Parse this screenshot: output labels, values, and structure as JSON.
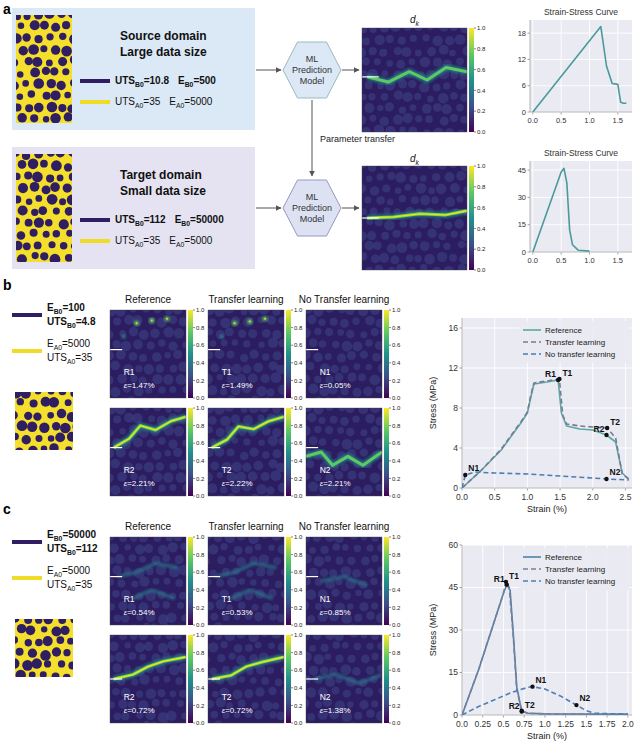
{
  "chart_data": [
    {
      "type": "line",
      "title": "Strain-Stress Curve",
      "xlim": [
        -0.05,
        1.75
      ],
      "ylim": [
        0,
        21
      ],
      "grid": true,
      "xticks": [
        {
          "value": 0,
          "label": "0.0"
        },
        0.5,
        {
          "value": 1,
          "label": "1.0"
        },
        1.5
      ],
      "yticks": [
        0,
        6,
        12,
        18
      ],
      "series": [
        {
          "color": "#4a9a9b",
          "line_style": "solid",
          "x": [
            0,
            1.2,
            1.3,
            1.4,
            1.5,
            1.55,
            1.6,
            1.65
          ],
          "values": [
            0,
            19.5,
            10.5,
            6.5,
            6.3,
            2.2,
            2.0,
            2.0
          ]
        }
      ]
    },
    {
      "type": "line",
      "title": "Strain-Stress Curve",
      "xlim": [
        -0.05,
        1.75
      ],
      "ylim": [
        0,
        50
      ],
      "grid": true,
      "xticks": [
        {
          "value": 0,
          "label": "0.0"
        },
        0.5,
        {
          "value": 1,
          "label": "1.0"
        },
        1.5
      ],
      "yticks": [
        0,
        15,
        30,
        45
      ],
      "series": [
        {
          "color": "#4a9a9b",
          "line_style": "solid",
          "x": [
            0,
            0.5,
            0.55,
            0.6,
            0.65,
            0.7,
            0.8,
            1.0
          ],
          "values": [
            0,
            44,
            46,
            38,
            12,
            4,
            1,
            0.5
          ]
        }
      ]
    },
    {
      "type": "line",
      "x_label": "Strain (%)",
      "y_label": "Stress (MPa)",
      "xlim": [
        0,
        2.6
      ],
      "ylim": [
        0,
        17
      ],
      "grid": true,
      "legend": "upper right",
      "xticks": [
        {
          "value": 0,
          "label": "0.0"
        },
        0.5,
        {
          "value": 1,
          "label": "1.0"
        },
        1.5,
        {
          "value": 2,
          "label": "2.0"
        },
        2.5
      ],
      "yticks": [
        0,
        4,
        8,
        12,
        16
      ],
      "series": [
        {
          "name": "Reference",
          "color": "#5aa8a0",
          "line_style": "solid",
          "x": [
            0,
            0.3,
            0.6,
            0.9,
            1.0,
            1.05,
            1.1,
            1.3,
            1.47,
            1.52,
            1.6,
            1.8,
            2.0,
            2.21,
            2.35,
            2.45,
            2.55
          ],
          "values": [
            0,
            1.8,
            3.8,
            6.5,
            7.5,
            9,
            10.4,
            10.6,
            10.8,
            7.5,
            6.2,
            5.9,
            5.8,
            5.3,
            4.6,
            1.5,
            0.9
          ]
        },
        {
          "name": "Transfer learning",
          "color": "#7a7a98",
          "line_style": "dashed",
          "x": [
            0,
            0.3,
            0.6,
            0.9,
            1.0,
            1.05,
            1.1,
            1.3,
            1.49,
            1.54,
            1.6,
            1.8,
            2.0,
            2.22,
            2.35,
            2.45,
            2.55
          ],
          "values": [
            0,
            1.8,
            3.9,
            6.6,
            7.6,
            9.2,
            10.5,
            10.7,
            10.9,
            7.3,
            6.4,
            6.2,
            6.1,
            6.0,
            5.0,
            1.4,
            0.9
          ]
        },
        {
          "name": "No transfer learning",
          "color": "#4a7db3",
          "line_style": "dashed",
          "x": [
            0,
            0.05,
            0.2,
            0.5,
            1.0,
            1.5,
            2.0,
            2.21,
            2.55
          ],
          "values": [
            0,
            1.3,
            1.6,
            1.5,
            1.4,
            1.2,
            1.0,
            0.9,
            0.8
          ]
        }
      ],
      "annotations": [
        {
          "label": "R1",
          "x": 1.47,
          "y": 10.8
        },
        {
          "label": "T1",
          "x": 1.49,
          "y": 10.9
        },
        {
          "label": "R2",
          "x": 2.21,
          "y": 5.3
        },
        {
          "label": "T2",
          "x": 2.22,
          "y": 6.0
        },
        {
          "label": "N1",
          "x": 0.05,
          "y": 1.3
        },
        {
          "label": "N2",
          "x": 2.21,
          "y": 0.9
        }
      ]
    },
    {
      "type": "line",
      "x_label": "Strain (%)",
      "y_label": "Stress (MPa)",
      "xlim": [
        0,
        2.05
      ],
      "ylim": [
        0,
        60
      ],
      "grid": true,
      "legend": "upper right",
      "xticks": [
        {
          "value": 0,
          "label": "0.0"
        },
        0.25,
        0.5,
        0.75,
        {
          "value": 1,
          "label": "1.0"
        },
        1.25,
        1.5,
        1.75,
        {
          "value": 2,
          "label": "2.0"
        }
      ],
      "yticks": [
        0,
        15,
        30,
        45,
        60
      ],
      "series": [
        {
          "name": "Reference",
          "color": "#4f80aa",
          "line_style": "solid",
          "x": [
            0,
            0.2,
            0.4,
            0.5,
            0.54,
            0.58,
            0.62,
            0.66,
            0.72,
            0.8,
            1.0,
            2.0
          ],
          "values": [
            0,
            16,
            34,
            43,
            46,
            44,
            28,
            10,
            1.2,
            0.6,
            0.4,
            0.3
          ]
        },
        {
          "name": "Transfer learning",
          "color": "#7d7f96",
          "line_style": "dashed",
          "x": [
            0,
            0.2,
            0.4,
            0.5,
            0.53,
            0.57,
            0.62,
            0.66,
            0.72,
            0.8,
            1.0,
            2.0
          ],
          "values": [
            0,
            16,
            34,
            43,
            47,
            45,
            27,
            9,
            1.5,
            0.6,
            0.4,
            0.3
          ]
        },
        {
          "name": "No transfer learning",
          "color": "#4d7fb5",
          "line_style": "dashed",
          "x": [
            0,
            0.2,
            0.4,
            0.6,
            0.8,
            0.85,
            1.0,
            1.2,
            1.38,
            1.5,
            1.6,
            2.0
          ],
          "values": [
            0,
            3,
            5.5,
            8,
            9.8,
            10,
            9.2,
            6.5,
            3.5,
            1.5,
            0.6,
            0.3
          ]
        }
      ],
      "annotations": [
        {
          "label": "R1",
          "x": 0.54,
          "y": 46
        },
        {
          "label": "T1",
          "x": 0.53,
          "y": 47
        },
        {
          "label": "R2",
          "x": 0.72,
          "y": 1.2
        },
        {
          "label": "T2",
          "x": 0.72,
          "y": 1.5
        },
        {
          "label": "N1",
          "x": 0.85,
          "y": 10
        },
        {
          "label": "N2",
          "x": 1.38,
          "y": 3.5
        }
      ]
    }
  ],
  "panel_labels": [
    "a",
    "b",
    "c"
  ],
  "panel_a": {
    "source": {
      "title": "Source domain",
      "subtitle": "Large data size",
      "phase_b": [
        [
          "UTS",
          "B0",
          "=10.8"
        ],
        [
          "E",
          "B0",
          "=500"
        ]
      ],
      "phase_a": [
        [
          "UTS",
          "A0",
          "=35"
        ],
        [
          "E",
          "A0",
          "=5000"
        ]
      ]
    },
    "target": {
      "title": "Target domain",
      "subtitle": "Small data size",
      "phase_b": [
        [
          "UTS",
          "B0",
          "=112"
        ],
        [
          "E",
          "B0",
          "=50000"
        ]
      ],
      "phase_a": [
        [
          "UTS",
          "A0",
          "=35"
        ],
        [
          "E",
          "A0",
          "=5000"
        ]
      ]
    },
    "model": "ML Prediction Model",
    "transfer": "Parameter transfer",
    "map_label": [
      "d",
      "k"
    ]
  },
  "colorbar": {
    "range": [
      0,
      1
    ],
    "ticks": [
      {
        "value": 0,
        "label": "0.0"
      },
      0.2,
      0.4,
      0.6,
      0.8,
      {
        "value": 1,
        "label": "1.0"
      }
    ]
  },
  "panel_b": {
    "phase_b": [
      [
        "E",
        "B0",
        "=100"
      ],
      [
        "UTS",
        "B0",
        "=4.8"
      ]
    ],
    "phase_a": [
      [
        "E",
        "A0",
        "=5000"
      ],
      [
        "UTS",
        "A0",
        "=35"
      ]
    ],
    "columns": [
      "Reference",
      "Transfer learning",
      "No Transfer learning"
    ],
    "maps": [
      [
        {
          "label": "R1",
          "strain": "ε=1.47%"
        },
        {
          "label": "T1",
          "strain": "ε=1.49%"
        },
        {
          "label": "N1",
          "strain": "ε=0.05%"
        }
      ],
      [
        {
          "label": "R2",
          "strain": "ε=2.21%"
        },
        {
          "label": "T2",
          "strain": "ε=2.22%"
        },
        {
          "label": "N2",
          "strain": "ε=2.21%"
        }
      ]
    ]
  },
  "panel_c": {
    "phase_b": [
      [
        "E",
        "B0",
        "=50000"
      ],
      [
        "UTS",
        "B0",
        "=112"
      ]
    ],
    "phase_a": [
      [
        "E",
        "A0",
        "=5000"
      ],
      [
        "UTS",
        "A0",
        "=35"
      ]
    ],
    "columns": [
      "Reference",
      "Transfer learning",
      "No Transfer learning"
    ],
    "maps": [
      [
        {
          "label": "R1",
          "strain": "ε=0.54%"
        },
        {
          "label": "T1",
          "strain": "ε=0.53%"
        },
        {
          "label": "N1",
          "strain": "ε=0.85%"
        }
      ],
      [
        {
          "label": "R2",
          "strain": "ε=0.72%"
        },
        {
          "label": "T2",
          "strain": "ε=0.72%"
        },
        {
          "label": "N2",
          "strain": "ε=1.38%"
        }
      ]
    ]
  }
}
